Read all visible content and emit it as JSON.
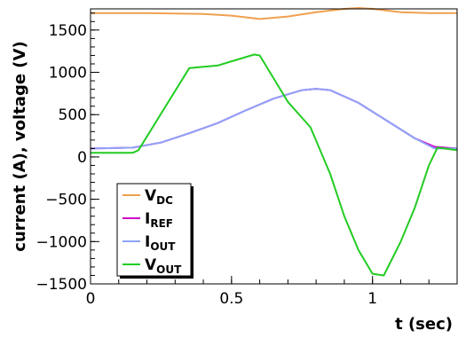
{
  "chart_data": {
    "type": "line",
    "xlabel": "t (sec)",
    "ylabel": "current (A), voltage (V)",
    "xlim": [
      0,
      1.3
    ],
    "ylim": [
      -1500,
      1750
    ],
    "x_ticks": [
      "0",
      "0.5",
      "1"
    ],
    "y_ticks": [
      "−1500",
      "−1000",
      "−500",
      "0",
      "500",
      "1000",
      "1500"
    ],
    "x_tick_values": [
      0,
      0.5,
      1
    ],
    "y_tick_values": [
      -1500,
      -1000,
      -500,
      0,
      500,
      1000,
      1500
    ],
    "grid": false,
    "legend_position": "bottom-left",
    "series": [
      {
        "name": "V",
        "subscript": "DC",
        "color": "#f0a050",
        "points": [
          [
            0,
            1700
          ],
          [
            0.2,
            1700
          ],
          [
            0.4,
            1690
          ],
          [
            0.5,
            1670
          ],
          [
            0.6,
            1630
          ],
          [
            0.7,
            1660
          ],
          [
            0.8,
            1710
          ],
          [
            0.85,
            1730
          ],
          [
            0.9,
            1750
          ],
          [
            0.95,
            1760
          ],
          [
            1.0,
            1750
          ],
          [
            1.05,
            1730
          ],
          [
            1.1,
            1710
          ],
          [
            1.2,
            1700
          ],
          [
            1.3,
            1700
          ]
        ]
      },
      {
        "name": "I",
        "subscript": "REF",
        "color": "#cc00cc",
        "points": [
          [
            0,
            100
          ],
          [
            0.15,
            110
          ],
          [
            0.25,
            170
          ],
          [
            0.35,
            280
          ],
          [
            0.45,
            400
          ],
          [
            0.55,
            550
          ],
          [
            0.65,
            690
          ],
          [
            0.75,
            790
          ],
          [
            0.8,
            805
          ],
          [
            0.85,
            790
          ],
          [
            0.95,
            640
          ],
          [
            1.05,
            430
          ],
          [
            1.15,
            220
          ],
          [
            1.22,
            120
          ],
          [
            1.3,
            100
          ]
        ]
      },
      {
        "name": "I",
        "subscript": "OUT",
        "color": "#8fa4f8",
        "points": [
          [
            0,
            100
          ],
          [
            0.15,
            110
          ],
          [
            0.25,
            170
          ],
          [
            0.35,
            280
          ],
          [
            0.45,
            400
          ],
          [
            0.55,
            550
          ],
          [
            0.65,
            690
          ],
          [
            0.75,
            790
          ],
          [
            0.8,
            805
          ],
          [
            0.85,
            790
          ],
          [
            0.95,
            640
          ],
          [
            1.05,
            430
          ],
          [
            1.15,
            220
          ],
          [
            1.22,
            100
          ],
          [
            1.3,
            100
          ]
        ]
      },
      {
        "name": "V",
        "subscript": "OUT",
        "color": "#22cc22",
        "points": [
          [
            0,
            50
          ],
          [
            0.15,
            50
          ],
          [
            0.17,
            80
          ],
          [
            0.35,
            1050
          ],
          [
            0.45,
            1080
          ],
          [
            0.58,
            1210
          ],
          [
            0.6,
            1200
          ],
          [
            0.7,
            650
          ],
          [
            0.78,
            350
          ],
          [
            0.85,
            -200
          ],
          [
            0.9,
            -700
          ],
          [
            0.95,
            -1100
          ],
          [
            1.0,
            -1380
          ],
          [
            1.04,
            -1400
          ],
          [
            1.1,
            -1000
          ],
          [
            1.15,
            -600
          ],
          [
            1.2,
            -100
          ],
          [
            1.23,
            110
          ],
          [
            1.3,
            80
          ]
        ]
      }
    ]
  }
}
